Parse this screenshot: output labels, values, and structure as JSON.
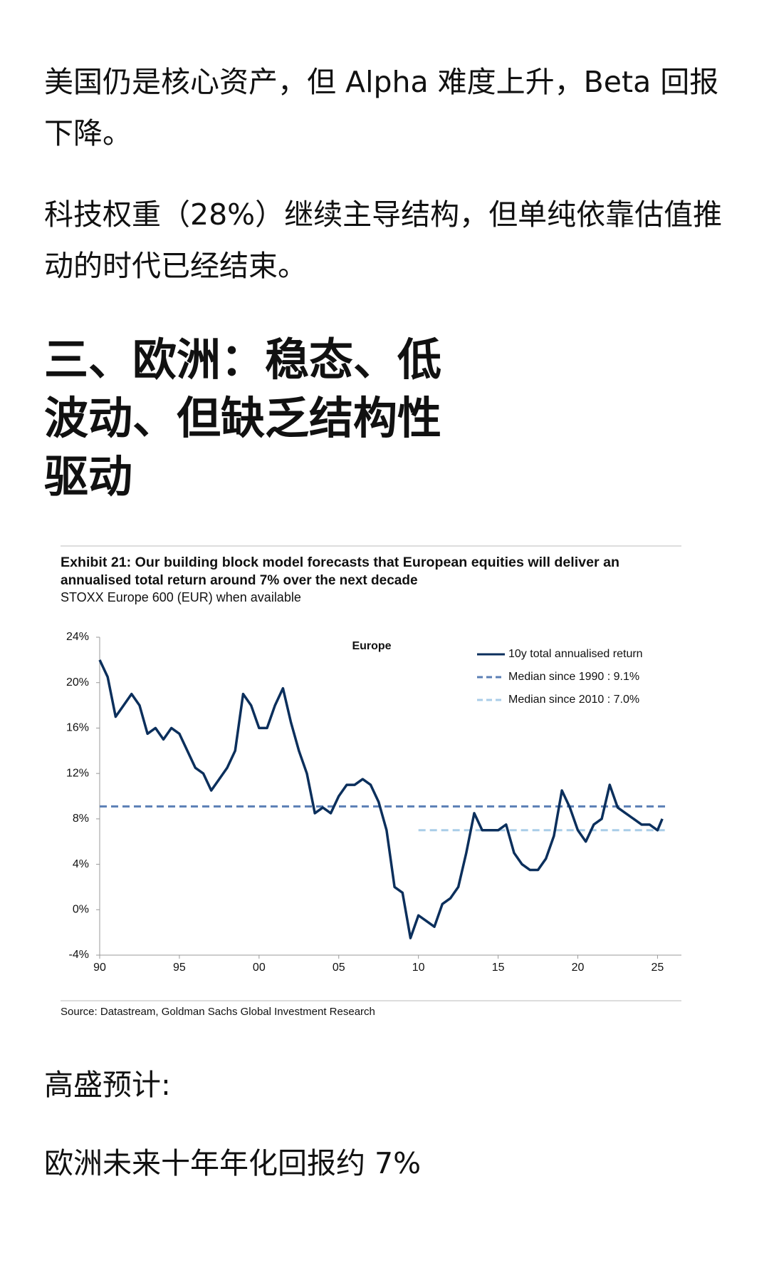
{
  "article": {
    "paragraph_1": "美国仍是核心资产，但 Alpha 难度上升，Beta 回报下降。",
    "paragraph_2": "科技权重（28%）继续主导结构，但单纯依靠估值推动的时代已经结束。",
    "heading": "三、欧洲：稳态、低波动、但缺乏结构性驱动",
    "paragraph_3": "高盛预计:",
    "paragraph_4": "欧洲未来十年年化回报约 7%"
  },
  "chart_data": {
    "type": "line",
    "title": [
      "Exhibit 21: Our building block model forecasts that European equities will deliver an",
      "annualised total return around 7% over the next decade"
    ],
    "subtitle": "STOXX Europe 600 (EUR) when available",
    "annotation": "Europe",
    "source": "Source: Datastream, Goldman Sachs Global Investment Research",
    "xlim": [
      1990,
      2026.5
    ],
    "xticks": [
      {
        "value": 1990,
        "label": "90"
      },
      {
        "value": 1995,
        "label": "95"
      },
      {
        "value": 2000,
        "label": "00"
      },
      {
        "value": 2005,
        "label": "05"
      },
      {
        "value": 2010,
        "label": "10"
      },
      {
        "value": 2015,
        "label": "15"
      },
      {
        "value": 2020,
        "label": "20"
      },
      {
        "value": 2025,
        "label": "25"
      }
    ],
    "ylim": [
      -4,
      24
    ],
    "yticks": [
      {
        "value": -4,
        "label": "-4%"
      },
      {
        "value": 0,
        "label": "0%"
      },
      {
        "value": 4,
        "label": "4%"
      },
      {
        "value": 8,
        "label": "8%"
      },
      {
        "value": 12,
        "label": "12%"
      },
      {
        "value": 16,
        "label": "16%"
      },
      {
        "value": 20,
        "label": "20%"
      },
      {
        "value": 24,
        "label": "24%"
      }
    ],
    "grid": false,
    "legend": "top-right",
    "series": [
      {
        "name": "10y total annualised return",
        "color": "#0b2f5c",
        "dashed": false,
        "x": [
          1990,
          1990.5,
          1991,
          1991.5,
          1992,
          1992.5,
          1993,
          1993.5,
          1994,
          1994.5,
          1995,
          1995.5,
          1996,
          1996.5,
          1997,
          1997.5,
          1998,
          1998.5,
          1999,
          1999.5,
          2000,
          2000.5,
          2001,
          2001.5,
          2002,
          2002.5,
          2003,
          2003.5,
          2004,
          2004.5,
          2005,
          2005.5,
          2006,
          2006.5,
          2007,
          2007.5,
          2008,
          2008.5,
          2009,
          2009.5,
          2010,
          2010.5,
          2011,
          2011.5,
          2012,
          2012.5,
          2013,
          2013.5,
          2014,
          2014.5,
          2015,
          2015.5,
          2016,
          2016.5,
          2017,
          2017.5,
          2018,
          2018.5,
          2019,
          2019.5,
          2020,
          2020.5,
          2021,
          2021.5,
          2022,
          2022.5,
          2023,
          2023.5,
          2024,
          2024.5,
          2025,
          2025.3
        ],
        "values": [
          22,
          20.5,
          17,
          18,
          19,
          18,
          15.5,
          16,
          15,
          16,
          15.5,
          14,
          12.5,
          12,
          10.5,
          11.5,
          12.5,
          14,
          19,
          18,
          16,
          16,
          18,
          19.5,
          16.5,
          14,
          12,
          8.5,
          9,
          8.5,
          10,
          11,
          11,
          11.5,
          11,
          9.5,
          7,
          2,
          1.5,
          -2.5,
          -0.5,
          -1,
          -1.5,
          0.5,
          1,
          2,
          5,
          8.5,
          7,
          7,
          7,
          7.5,
          5,
          4,
          3.5,
          3.5,
          4.5,
          6.5,
          10.5,
          9,
          7,
          6,
          7.5,
          8,
          11,
          9,
          8.5,
          8,
          7.5,
          7.5,
          7,
          8
        ]
      },
      {
        "name": "Median since 1990 : 9.1%",
        "color": "#5b7fb5",
        "dashed": true,
        "x": [
          1990,
          2025.5
        ],
        "values": [
          9.1,
          9.1
        ]
      },
      {
        "name": "Median since 2010 : 7.0%",
        "color": "#a9cde8",
        "dashed": true,
        "x": [
          2010,
          2025.5
        ],
        "values": [
          7.0,
          7.0
        ]
      }
    ]
  }
}
